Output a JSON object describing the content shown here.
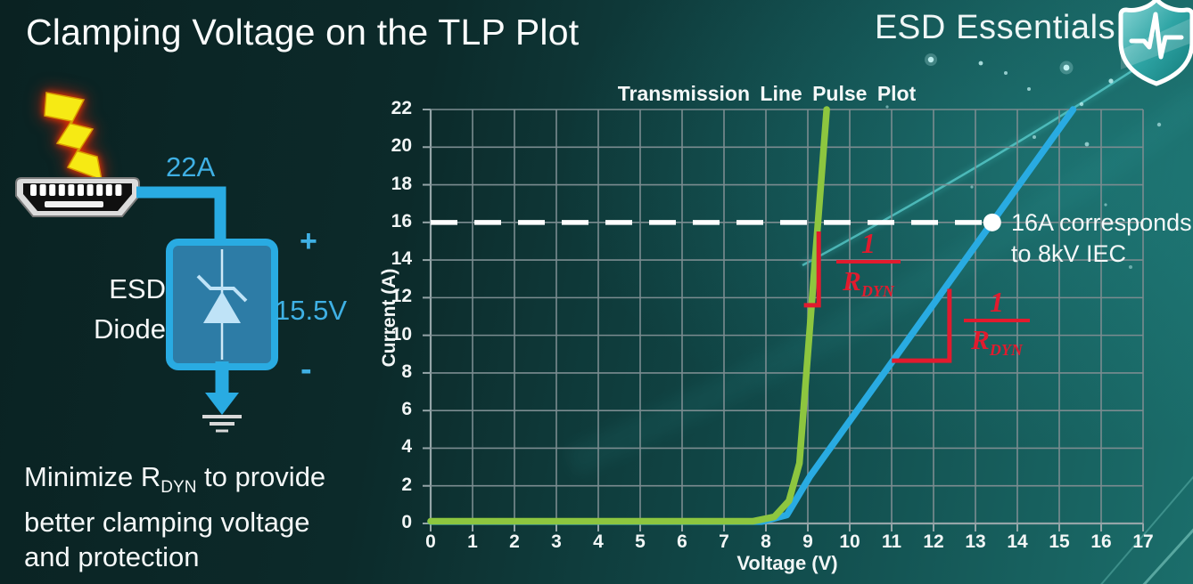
{
  "colors": {
    "accent_blue": "#29abe2",
    "accent_text": "#3fb0e4",
    "lime_green": "#8dc63f",
    "annotation_red": "#e11b2e",
    "background_dark": "#0a2222",
    "background_light": "#1b6e6b"
  },
  "header": {
    "title": "Clamping Voltage on the TLP Plot",
    "brand": "ESD Essentials"
  },
  "diagram": {
    "surge_current": "22A",
    "component_line1": "ESD",
    "component_line2": "Diode",
    "plus": "+",
    "clamp_voltage": "15.5V",
    "minus": "-"
  },
  "note": {
    "line1_pre": "Minimize R",
    "line1_sub": "DYN",
    "line1_post": " to provide",
    "line2": "better clamping voltage",
    "line3": "and protection"
  },
  "chart_data": {
    "type": "line",
    "title": "Transmission Line Pulse Plot",
    "xlabel": "Voltage (V)",
    "ylabel": "Current (A)",
    "xlim": [
      0,
      17
    ],
    "ylim": [
      0,
      22
    ],
    "x_ticks": [
      0,
      1,
      2,
      3,
      4,
      5,
      6,
      7,
      8,
      9,
      10,
      11,
      12,
      13,
      14,
      15,
      16,
      17
    ],
    "y_ticks": [
      0,
      2,
      4,
      6,
      8,
      10,
      12,
      14,
      16,
      18,
      20,
      22
    ],
    "grid": true,
    "legend": "none",
    "series": [
      {
        "name": "blue_higher_rdyn_device",
        "color": "#29abe2",
        "points": [
          [
            0,
            0.1
          ],
          [
            7.9,
            0.1
          ],
          [
            8.5,
            0.45
          ],
          [
            9.05,
            2.5
          ],
          [
            15.33,
            22
          ]
        ]
      },
      {
        "name": "green_lower_rdyn_device",
        "color": "#8dc63f",
        "points": [
          [
            0,
            0.12
          ],
          [
            7.7,
            0.12
          ],
          [
            8.2,
            0.35
          ],
          [
            8.55,
            1.2
          ],
          [
            8.8,
            3.2
          ],
          [
            9.45,
            22
          ]
        ]
      }
    ],
    "reference_line": {
      "y": 16,
      "x_from": 0,
      "x_to": 13.4,
      "color": "#ffffff",
      "style": "dashed"
    },
    "marker": {
      "x": 13.4,
      "y": 16,
      "color": "#ffffff"
    },
    "marker_label": {
      "line1": "16A corresponds",
      "line2": "to 8kV IEC"
    },
    "slope_brackets": [
      {
        "points": [
          [
            8.96,
            11.6
          ],
          [
            9.26,
            11.6
          ],
          [
            9.26,
            15.4
          ]
        ]
      },
      {
        "points": [
          [
            11.06,
            8.65
          ],
          [
            12.38,
            8.65
          ],
          [
            12.38,
            12.35
          ]
        ]
      }
    ],
    "slope_fraction": {
      "numerator": "1",
      "denominator_base": "R",
      "denominator_sub": "DYN"
    },
    "chart_colors": {
      "grid": "#7b8c90",
      "axis": "#95a5a8",
      "annotation_red": "#e11b2e"
    }
  }
}
